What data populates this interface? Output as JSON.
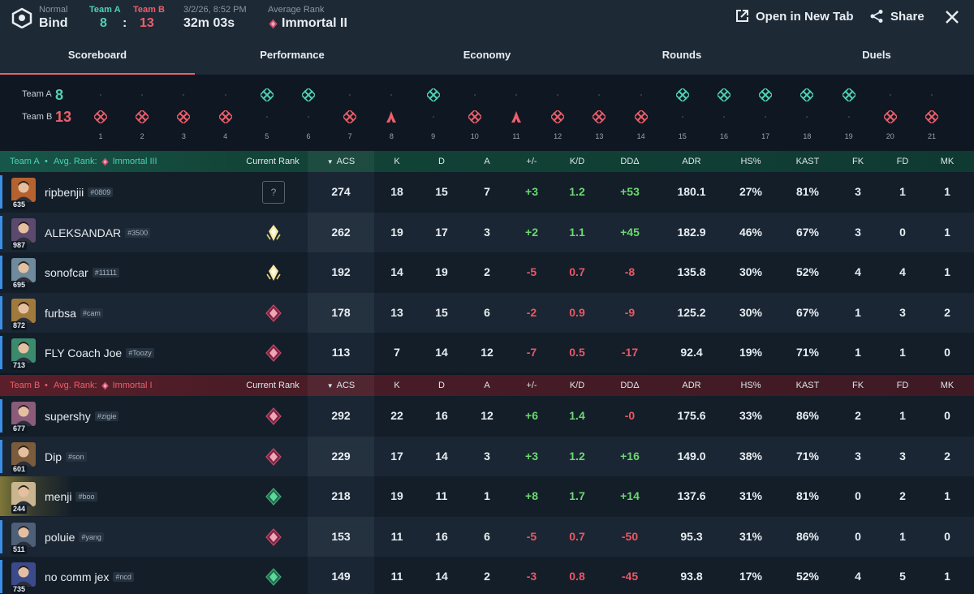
{
  "header": {
    "mode": "Normal",
    "map": "Bind",
    "team_a_label": "Team A",
    "team_b_label": "Team B",
    "team_a_score": "8",
    "score_sep": ":",
    "team_b_score": "13",
    "date": "3/2/26, 8:52 PM",
    "duration": "32m 03s",
    "avg_rank_label": "Average Rank",
    "avg_rank": "Immortal II",
    "open_tab_label": "Open in New Tab",
    "share_label": "Share"
  },
  "tabs": [
    "Scoreboard",
    "Performance",
    "Economy",
    "Rounds",
    "Duels"
  ],
  "timeline": {
    "team_a_label": "Team A",
    "team_a_score": "8",
    "team_b_label": "Team B",
    "team_b_score": "13",
    "rounds": [
      {
        "n": "1",
        "winner": "B",
        "type": "elim"
      },
      {
        "n": "2",
        "winner": "B",
        "type": "elim"
      },
      {
        "n": "3",
        "winner": "B",
        "type": "elim"
      },
      {
        "n": "4",
        "winner": "B",
        "type": "elim"
      },
      {
        "n": "5",
        "winner": "A",
        "type": "elim"
      },
      {
        "n": "6",
        "winner": "A",
        "type": "elim"
      },
      {
        "n": "7",
        "winner": "B",
        "type": "elim"
      },
      {
        "n": "8",
        "winner": "B",
        "type": "spike"
      },
      {
        "n": "9",
        "winner": "A",
        "type": "elim"
      },
      {
        "n": "10",
        "winner": "B",
        "type": "elim"
      },
      {
        "n": "11",
        "winner": "B",
        "type": "spike"
      },
      {
        "n": "12",
        "winner": "B",
        "type": "elim"
      },
      {
        "n": "13",
        "winner": "B",
        "type": "elim"
      },
      {
        "n": "14",
        "winner": "B",
        "type": "elim"
      },
      {
        "n": "15",
        "winner": "A",
        "type": "elim"
      },
      {
        "n": "16",
        "winner": "A",
        "type": "elim"
      },
      {
        "n": "17",
        "winner": "A",
        "type": "elim"
      },
      {
        "n": "18",
        "winner": "A",
        "type": "elim"
      },
      {
        "n": "19",
        "winner": "A",
        "type": "elim"
      },
      {
        "n": "20",
        "winner": "B",
        "type": "elim"
      },
      {
        "n": "21",
        "winner": "B",
        "type": "elim"
      }
    ]
  },
  "columns": {
    "current_rank": "Current Rank",
    "acs": "ACS",
    "k": "K",
    "d": "D",
    "a": "A",
    "pm": "+/-",
    "kd": "K/D",
    "dd": "DDΔ",
    "adr": "ADR",
    "hs": "HS%",
    "kast": "KAST",
    "fk": "FK",
    "fd": "FD",
    "mk": "MK"
  },
  "team_a": {
    "label": "Team A",
    "avg_rank_prefix": "Avg. Rank:",
    "avg_rank": "Immortal III",
    "players": [
      {
        "name": "ripbenjii",
        "tag": "#0809",
        "level": "635",
        "rank_icon": "unknown-rank",
        "rank_glyph": "?",
        "acs": "274",
        "k": "18",
        "d": "15",
        "a": "7",
        "pm": "+3",
        "kd": "1.2",
        "dd": "+53",
        "adr": "180.1",
        "hs": "27%",
        "kast": "81%",
        "fk": "3",
        "fd": "1",
        "mk": "1"
      },
      {
        "name": "ALEKSANDAR",
        "tag": "#3500",
        "level": "987",
        "rank_icon": "radiant-rank",
        "acs": "262",
        "k": "19",
        "d": "17",
        "a": "3",
        "pm": "+2",
        "kd": "1.1",
        "dd": "+45",
        "adr": "182.9",
        "hs": "46%",
        "kast": "67%",
        "fk": "3",
        "fd": "0",
        "mk": "1"
      },
      {
        "name": "sonofcar",
        "tag": "#11111",
        "level": "695",
        "rank_icon": "radiant-rank",
        "acs": "192",
        "k": "14",
        "d": "19",
        "a": "2",
        "pm": "-5",
        "kd": "0.7",
        "dd": "-8",
        "adr": "135.8",
        "hs": "30%",
        "kast": "52%",
        "fk": "4",
        "fd": "4",
        "mk": "1"
      },
      {
        "name": "furbsa",
        "tag": "#cam",
        "level": "872",
        "rank_icon": "immortal-rank",
        "acs": "178",
        "k": "13",
        "d": "15",
        "a": "6",
        "pm": "-2",
        "kd": "0.9",
        "dd": "-9",
        "adr": "125.2",
        "hs": "30%",
        "kast": "67%",
        "fk": "1",
        "fd": "3",
        "mk": "2"
      },
      {
        "name": "FLY Coach Joe",
        "tag": "#Toozy",
        "level": "713",
        "rank_icon": "immortal-rank",
        "acs": "113",
        "k": "7",
        "d": "14",
        "a": "12",
        "pm": "-7",
        "kd": "0.5",
        "dd": "-17",
        "adr": "92.4",
        "hs": "19%",
        "kast": "71%",
        "fk": "1",
        "fd": "1",
        "mk": "0"
      }
    ]
  },
  "team_b": {
    "label": "Team B",
    "avg_rank_prefix": "Avg. Rank:",
    "avg_rank": "Immortal I",
    "players": [
      {
        "name": "supershy",
        "tag": "#zigie",
        "level": "677",
        "rank_icon": "immortal-rank",
        "acs": "292",
        "k": "22",
        "d": "16",
        "a": "12",
        "pm": "+6",
        "kd": "1.4",
        "dd": "-0",
        "adr": "175.6",
        "hs": "33%",
        "kast": "86%",
        "fk": "2",
        "fd": "1",
        "mk": "0"
      },
      {
        "name": "Dip",
        "tag": "#son",
        "level": "601",
        "rank_icon": "immortal-rank",
        "acs": "229",
        "k": "17",
        "d": "14",
        "a": "3",
        "pm": "+3",
        "kd": "1.2",
        "dd": "+16",
        "adr": "149.0",
        "hs": "38%",
        "kast": "71%",
        "fk": "3",
        "fd": "3",
        "mk": "2"
      },
      {
        "name": "menji",
        "tag": "#boo",
        "level": "244",
        "rank_icon": "ascendant-rank",
        "acs": "218",
        "k": "19",
        "d": "11",
        "a": "1",
        "pm": "+8",
        "kd": "1.7",
        "dd": "+14",
        "adr": "137.6",
        "hs": "31%",
        "kast": "81%",
        "fk": "0",
        "fd": "2",
        "mk": "1"
      },
      {
        "name": "poluie",
        "tag": "#yang",
        "level": "511",
        "rank_icon": "immortal-rank",
        "acs": "153",
        "k": "11",
        "d": "16",
        "a": "6",
        "pm": "-5",
        "kd": "0.7",
        "dd": "-50",
        "adr": "95.3",
        "hs": "31%",
        "kast": "86%",
        "fk": "0",
        "fd": "1",
        "mk": "0"
      },
      {
        "name": "no comm jex",
        "tag": "#ncd",
        "level": "735",
        "rank_icon": "ascendant-rank",
        "acs": "149",
        "k": "11",
        "d": "14",
        "a": "2",
        "pm": "-3",
        "kd": "0.8",
        "dd": "-45",
        "adr": "93.8",
        "hs": "17%",
        "kast": "52%",
        "fk": "4",
        "fd": "5",
        "mk": "1"
      }
    ]
  },
  "colors": {
    "team_a": "#4fd1b5",
    "team_b": "#ee5f6b",
    "positive": "#6bd96f",
    "negative": "#ec5765",
    "self_marker": "#3b8fe6"
  }
}
